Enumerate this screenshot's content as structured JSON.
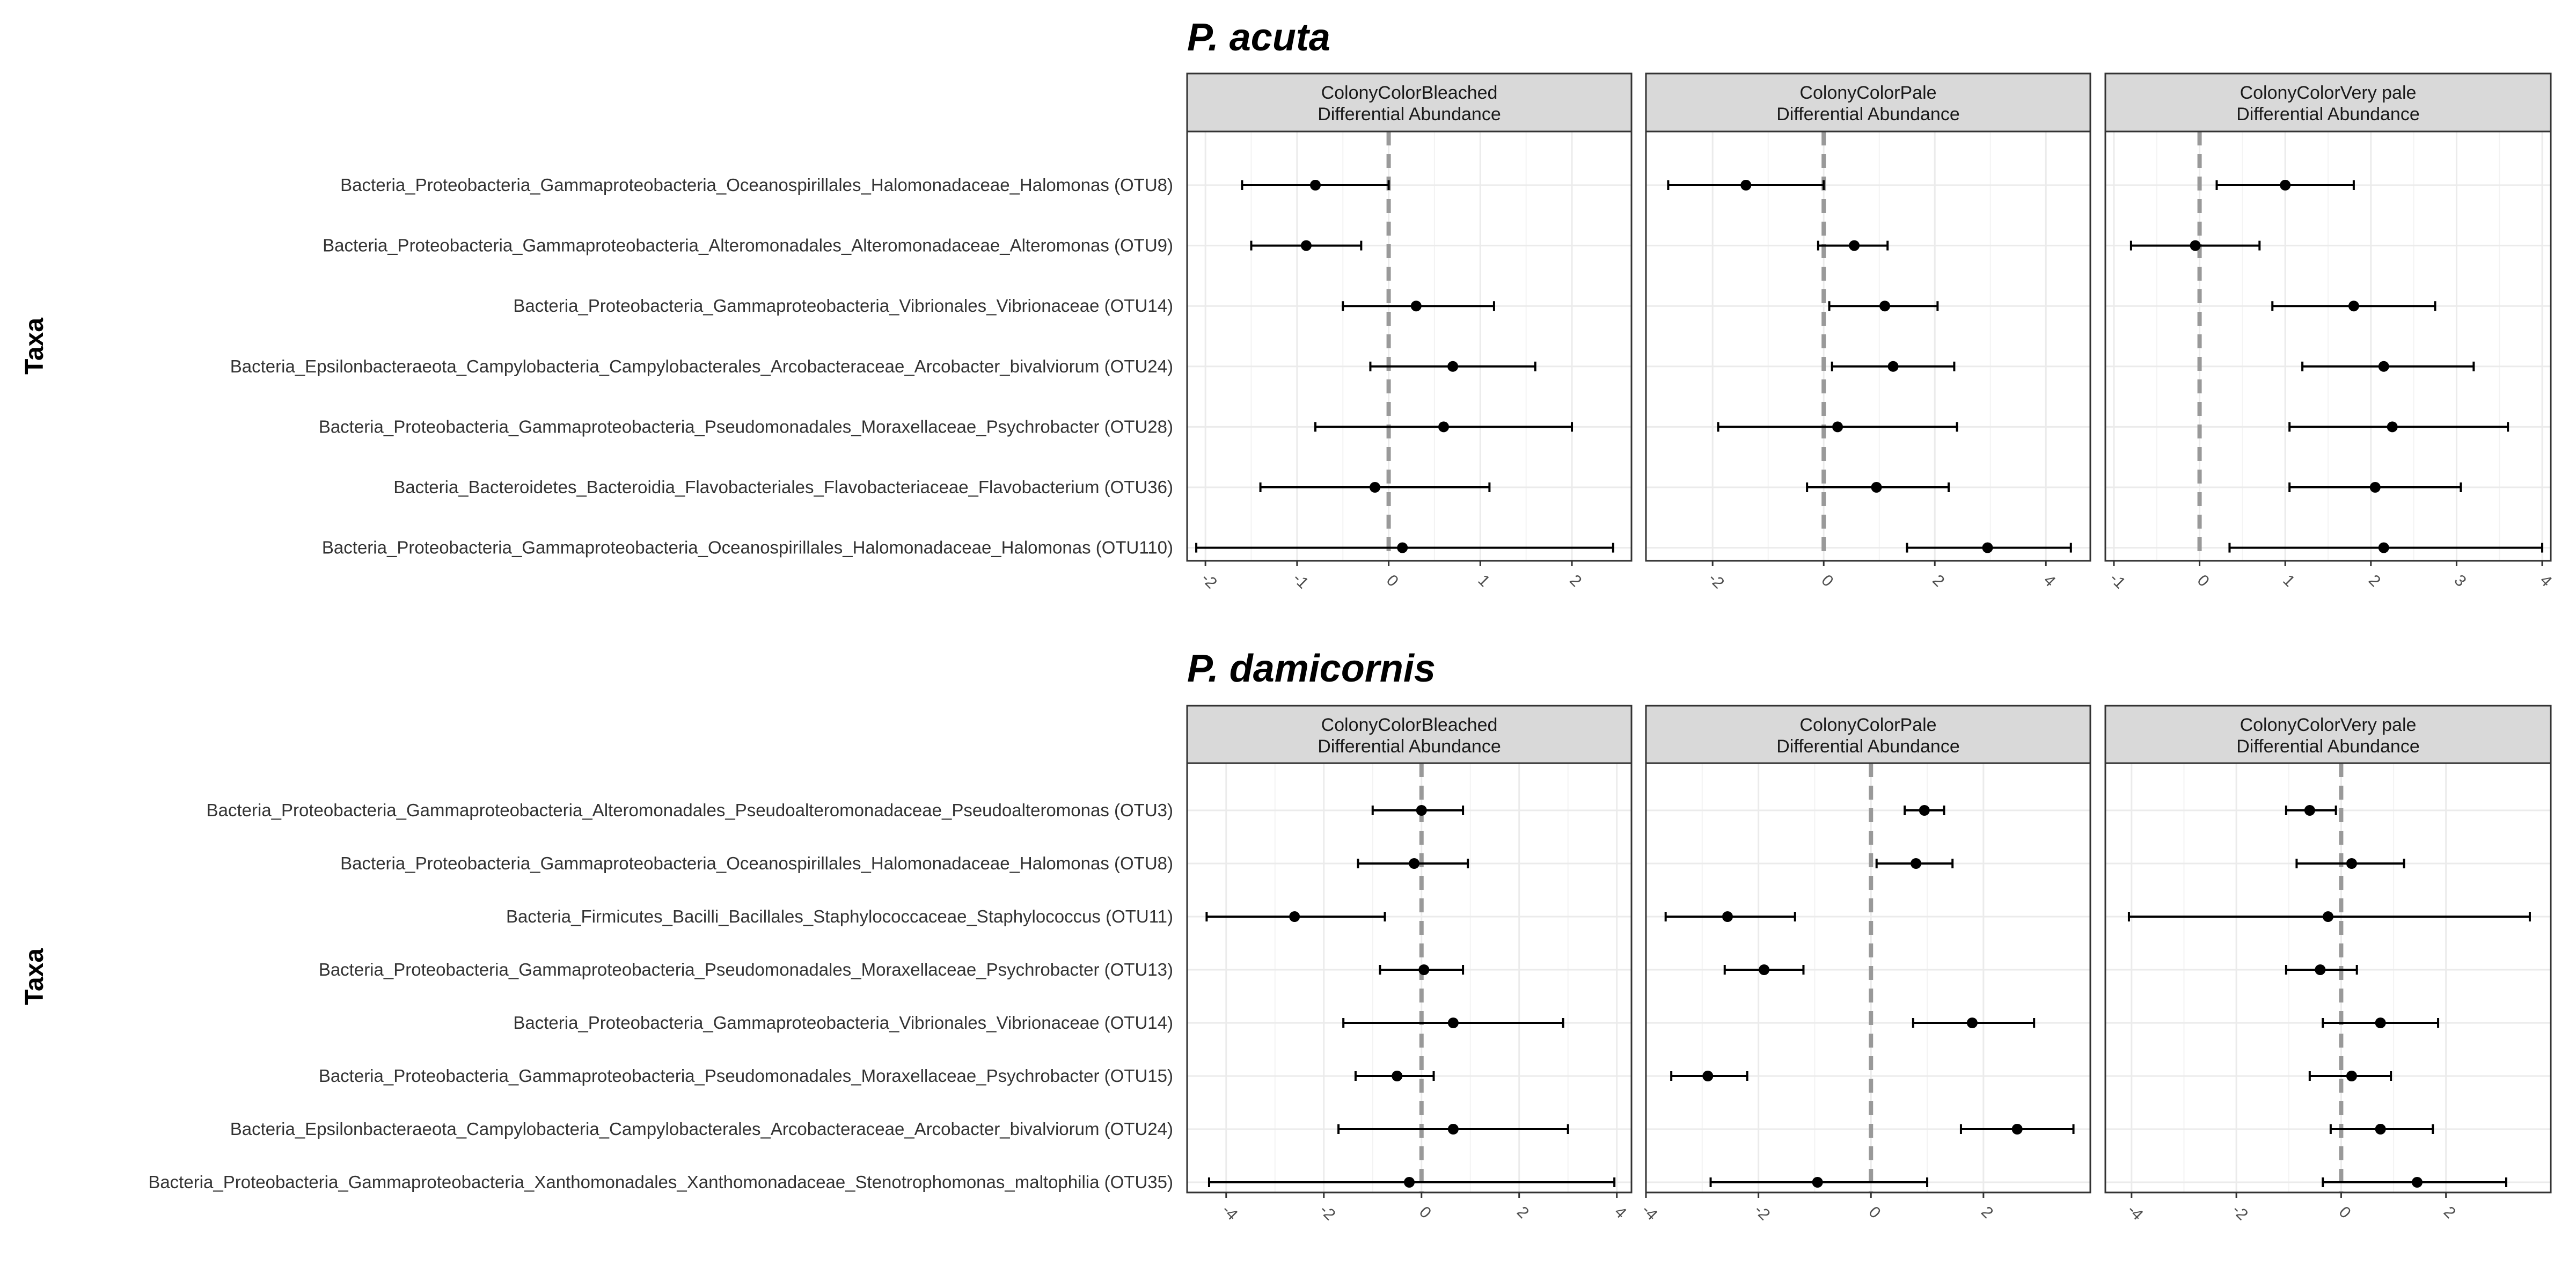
{
  "y_axis_label": "Taxa",
  "colors": {
    "strip_fill": "#d9d9d9",
    "grid": "#ebebeb",
    "frame": "#333333",
    "zero_line": "#999999",
    "point": "#000000"
  },
  "chart_data": [
    {
      "type": "scatter",
      "title": "P. acuta",
      "ylabel": "Taxa",
      "grid": true,
      "categories": [
        "Bacteria_Proteobacteria_Gammaproteobacteria_Oceanospirillales_Halomonadaceae_Halomonas (OTU8)",
        "Bacteria_Proteobacteria_Gammaproteobacteria_Alteromonadales_Alteromonadaceae_Alteromonas (OTU9)",
        "Bacteria_Proteobacteria_Gammaproteobacteria_Vibrionales_Vibrionaceae (OTU14)",
        "Bacteria_Epsilonbacteraeota_Campylobacteria_Campylobacterales_Arcobacteraceae_Arcobacter_bivalviorum (OTU24)",
        "Bacteria_Proteobacteria_Gammaproteobacteria_Pseudomonadales_Moraxellaceae_Psychrobacter (OTU28)",
        "Bacteria_Bacteroidetes_Bacteroidia_Flavobacteriales_Flavobacteriaceae_Flavobacterium (OTU36)",
        "Bacteria_Proteobacteria_Gammaproteobacteria_Oceanospirillales_Halomonadaceae_Halomonas (OTU110)"
      ],
      "panels": [
        {
          "strip": [
            "ColonyColorBleached",
            "Differential Abundance"
          ],
          "xlim": [
            -2.2,
            2.65
          ],
          "ticks": [
            -2,
            -1,
            0,
            1,
            2
          ],
          "tick_labels": [
            "-2",
            "-1",
            "0",
            "1",
            "2"
          ],
          "estimate": [
            -0.8,
            -0.9,
            0.3,
            0.7,
            0.6,
            -0.15,
            0.15
          ],
          "lower": [
            -1.6,
            -1.5,
            -0.5,
            -0.2,
            -0.8,
            -1.4,
            -2.1
          ],
          "upper": [
            0.0,
            -0.3,
            1.15,
            1.6,
            2.0,
            1.1,
            2.45
          ]
        },
        {
          "strip": [
            "ColonyColorPale",
            "Differential Abundance"
          ],
          "xlim": [
            -3.2,
            4.8
          ],
          "ticks": [
            -2,
            0,
            2,
            4
          ],
          "tick_labels": [
            "-2",
            "0",
            "2",
            "4"
          ],
          "estimate": [
            -1.4,
            0.55,
            1.1,
            1.25,
            0.25,
            0.95,
            2.95
          ],
          "lower": [
            -2.8,
            -0.1,
            0.1,
            0.15,
            -1.9,
            -0.3,
            1.5
          ],
          "upper": [
            0.0,
            1.15,
            2.05,
            2.35,
            2.4,
            2.25,
            4.45
          ]
        },
        {
          "strip": [
            "ColonyColorVery pale",
            "Differential Abundance"
          ],
          "xlim": [
            -1.1,
            4.1
          ],
          "ticks": [
            -1,
            0,
            1,
            2,
            3,
            4
          ],
          "tick_labels": [
            "-1",
            "0",
            "1",
            "2",
            "3",
            "4"
          ],
          "estimate": [
            1.0,
            -0.05,
            1.8,
            2.15,
            2.25,
            2.05,
            2.15
          ],
          "lower": [
            0.2,
            -0.8,
            0.85,
            1.2,
            1.05,
            1.05,
            0.35
          ],
          "upper": [
            1.8,
            0.7,
            2.75,
            3.2,
            3.6,
            3.05,
            4.0
          ]
        }
      ]
    },
    {
      "type": "scatter",
      "title": "P. damicornis",
      "ylabel": "Taxa",
      "grid": true,
      "categories": [
        "Bacteria_Proteobacteria_Gammaproteobacteria_Alteromonadales_Pseudoalteromonadaceae_Pseudoalteromonas (OTU3)",
        "Bacteria_Proteobacteria_Gammaproteobacteria_Oceanospirillales_Halomonadaceae_Halomonas (OTU8)",
        "Bacteria_Firmicutes_Bacilli_Bacillales_Staphylococcaceae_Staphylococcus (OTU11)",
        "Bacteria_Proteobacteria_Gammaproteobacteria_Pseudomonadales_Moraxellaceae_Psychrobacter (OTU13)",
        "Bacteria_Proteobacteria_Gammaproteobacteria_Vibrionales_Vibrionaceae (OTU14)",
        "Bacteria_Proteobacteria_Gammaproteobacteria_Pseudomonadales_Moraxellaceae_Psychrobacter (OTU15)",
        "Bacteria_Epsilonbacteraeota_Campylobacteria_Campylobacterales_Arcobacteraceae_Arcobacter_bivalviorum (OTU24)",
        "Bacteria_Proteobacteria_Gammaproteobacteria_Xanthomonadales_Xanthomonadaceae_Stenotrophomonas_maltophilia (OTU35)"
      ],
      "panels": [
        {
          "strip": [
            "ColonyColorBleached",
            "Differential Abundance"
          ],
          "xlim": [
            -4.8,
            4.3
          ],
          "ticks": [
            -4,
            -2,
            0,
            2,
            4
          ],
          "tick_labels": [
            "-4",
            "-2",
            "0",
            "2",
            "4"
          ],
          "estimate": [
            0.0,
            -0.15,
            -2.6,
            0.05,
            0.65,
            -0.5,
            0.65,
            -0.25
          ],
          "lower": [
            -1.0,
            -1.3,
            -4.4,
            -0.85,
            -1.6,
            -1.35,
            -1.7,
            -4.35
          ],
          "upper": [
            0.85,
            0.95,
            -0.75,
            0.85,
            2.9,
            0.25,
            3.0,
            3.95
          ]
        },
        {
          "strip": [
            "ColonyColorPale",
            "Differential Abundance"
          ],
          "xlim": [
            -4.0,
            3.9
          ],
          "ticks": [
            -4,
            -2,
            0,
            2
          ],
          "tick_labels": [
            "-4",
            "-2",
            "0",
            "2"
          ],
          "estimate": [
            0.95,
            0.8,
            -2.55,
            -1.9,
            1.8,
            -2.9,
            2.6,
            -0.95
          ],
          "lower": [
            0.6,
            0.1,
            -3.65,
            -2.6,
            0.75,
            -3.55,
            1.6,
            -2.85
          ],
          "upper": [
            1.3,
            1.45,
            -1.35,
            -1.2,
            2.9,
            -2.2,
            3.6,
            1.0
          ]
        },
        {
          "strip": [
            "ColonyColorVery pale",
            "Differential Abundance"
          ],
          "xlim": [
            -4.5,
            4.0
          ],
          "ticks": [
            -4,
            -2,
            0,
            2
          ],
          "tick_labels": [
            "-4",
            "-2",
            "0",
            "2"
          ],
          "estimate": [
            -0.6,
            0.2,
            -0.25,
            -0.4,
            0.75,
            0.2,
            0.75,
            1.45
          ],
          "lower": [
            -1.05,
            -0.85,
            -4.05,
            -1.05,
            -0.35,
            -0.6,
            -0.2,
            -0.35
          ],
          "upper": [
            -0.1,
            1.2,
            3.6,
            0.3,
            1.85,
            0.95,
            1.75,
            3.15
          ]
        }
      ]
    }
  ]
}
